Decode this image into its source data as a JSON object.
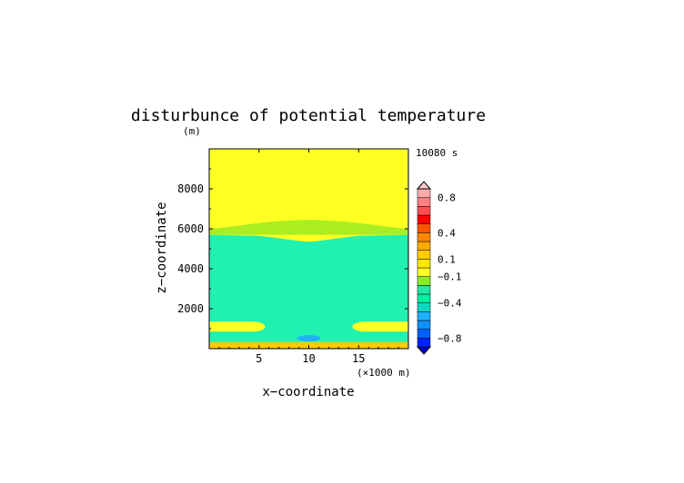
{
  "chart_data": {
    "type": "heatmap",
    "title": "disturbunce of potential temperature",
    "unit_label": "(m)",
    "time_label": "10080 s",
    "xlabel": "x−coordinate",
    "ylabel": "z−coordinate",
    "x_unit_label": "(×1000 m)",
    "xlim": [
      0,
      20
    ],
    "ylim": [
      0,
      10000
    ],
    "x_ticks": [
      5,
      10,
      15
    ],
    "y_ticks": [
      2000,
      4000,
      6000,
      8000
    ],
    "x_tick_labels": [
      "5",
      "10",
      "15"
    ],
    "y_tick_labels": [
      "2000",
      "4000",
      "6000",
      "8000"
    ],
    "colorbar": {
      "levels": [
        -1.0,
        -0.9,
        -0.8,
        -0.7,
        -0.6,
        -0.5,
        -0.4,
        -0.3,
        -0.2,
        -0.1,
        0.0,
        0.1,
        0.2,
        0.3,
        0.4,
        0.5,
        0.6,
        0.7,
        0.8,
        0.9,
        1.0
      ],
      "colors": [
        "#0000cc",
        "#0022ff",
        "#0060ff",
        "#1090ff",
        "#20b0ff",
        "#10d8c0",
        "#00f0a0",
        "#20e8a0",
        "#88ee22",
        "#ffff22",
        "#ffe800",
        "#ffcc00",
        "#ffaa00",
        "#ff8800",
        "#ff5500",
        "#ff0000",
        "#ff5050",
        "#ff8080",
        "#ffaaaa",
        "#ffc8c8"
      ],
      "labels": [
        "0.8",
        "0.4",
        "0.1",
        "−0.1",
        "−0.4",
        "−0.8"
      ],
      "label_values": [
        0.8,
        0.4,
        0.1,
        -0.1,
        -0.4,
        -0.8
      ]
    },
    "fields": {
      "upper_yellow": {
        "value": -0.05,
        "color": "#ffff22"
      },
      "bulge_green": {
        "value": -0.15,
        "color": "#aaee22"
      },
      "mid_cyan": {
        "value": -0.3,
        "color": "#20f0b0"
      },
      "low_yellow": {
        "value": -0.05,
        "color": "#ffff22"
      },
      "small_blue": {
        "value": -0.45,
        "color": "#20b0ff"
      },
      "surface_orange": {
        "value": 0.15,
        "color": "#ffcc00"
      }
    }
  }
}
